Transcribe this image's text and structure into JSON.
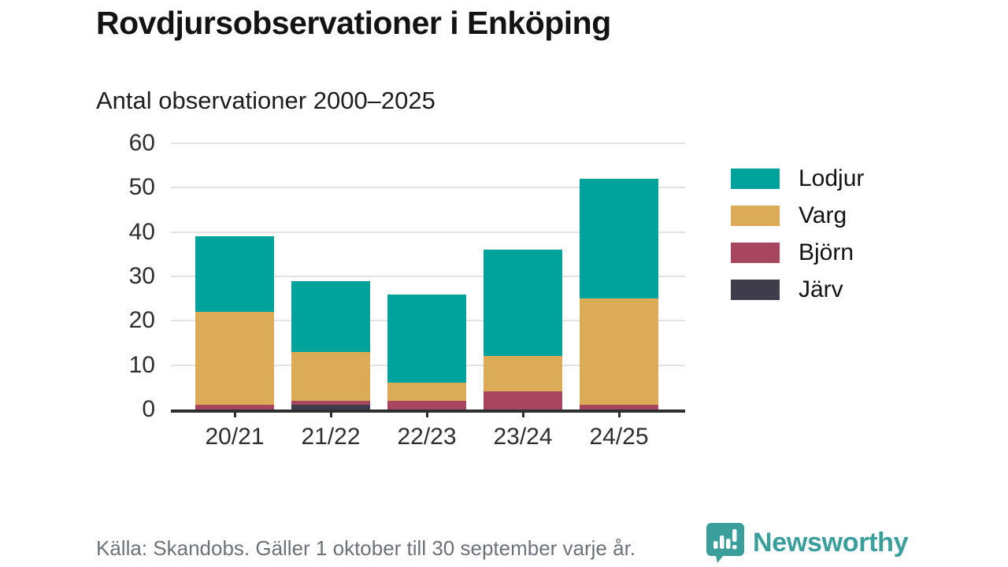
{
  "header": {
    "title": "Rovdjursobservationer i Enköping",
    "subtitle": "Antal observationer 2000–2025"
  },
  "chart_data": {
    "type": "bar",
    "stacked": true,
    "title": "Rovdjursobservationer i Enköping",
    "subtitle": "Antal observationer 2000–2025",
    "categories": [
      "20/21",
      "21/22",
      "22/23",
      "23/24",
      "24/25"
    ],
    "series": [
      {
        "name": "Järv",
        "color": "#3f3c4b",
        "values": [
          0,
          1,
          0,
          0,
          0
        ]
      },
      {
        "name": "Björn",
        "color": "#a8455f",
        "values": [
          1,
          1,
          2,
          4,
          1
        ]
      },
      {
        "name": "Varg",
        "color": "#dcab57",
        "values": [
          21,
          11,
          4,
          8,
          24
        ]
      },
      {
        "name": "Lodjur",
        "color": "#00a39b",
        "values": [
          17,
          16,
          20,
          24,
          27
        ]
      }
    ],
    "totals": [
      39,
      29,
      26,
      36,
      52
    ],
    "xlabel": "",
    "ylabel": "",
    "ylim": [
      0,
      60
    ],
    "yticks": [
      0,
      10,
      20,
      30,
      40,
      50,
      60
    ],
    "grid": true,
    "grid_color": "#e3e3e3",
    "axis_color": "#2f2f2f",
    "legend_position": "right"
  },
  "legend": {
    "items": [
      {
        "label": "Lodjur",
        "color": "#00a39b"
      },
      {
        "label": "Varg",
        "color": "#dcab57"
      },
      {
        "label": "Björn",
        "color": "#a8455f"
      },
      {
        "label": "Järv",
        "color": "#3f3c4b"
      }
    ]
  },
  "footer": {
    "source": "Källa: Skandobs. Gäller 1 oktober till 30 september varje år.",
    "brand": "Newsworthy",
    "brand_color": "#3a9e9a"
  }
}
